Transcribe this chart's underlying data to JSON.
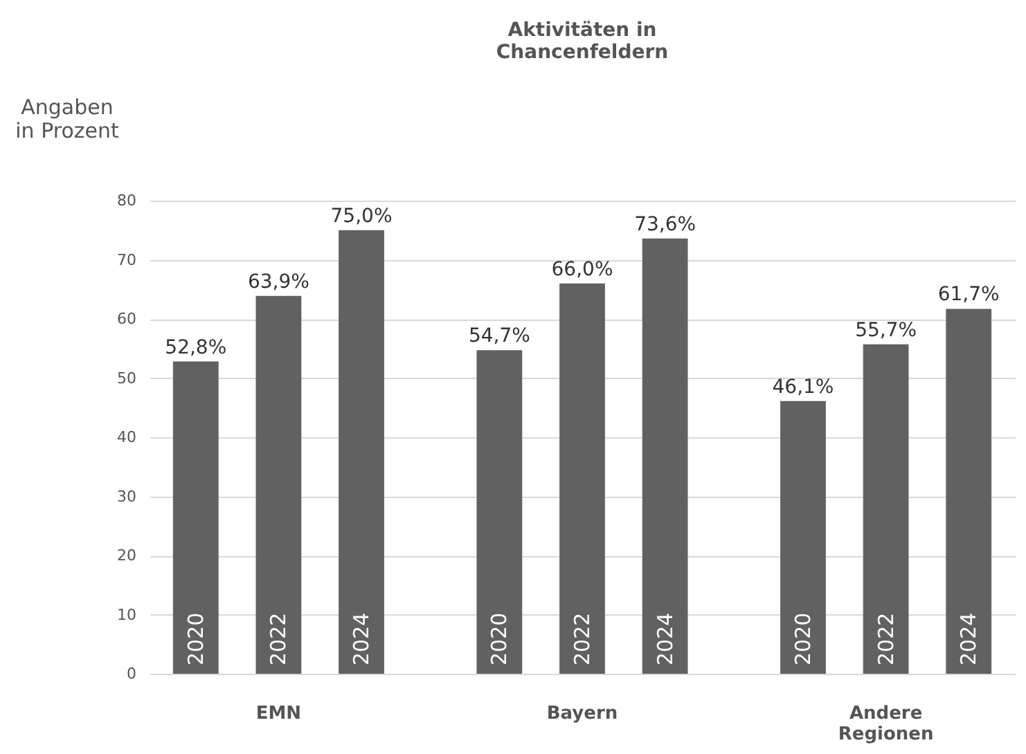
{
  "chart_data": {
    "type": "bar",
    "title": "Aktivitäten in Chancenfeldern",
    "ylabel": "Angaben in Prozent",
    "categories": [
      "EMN",
      "Bayern",
      "Andere Regionen"
    ],
    "series": [
      {
        "name": "2020",
        "color": "#616161",
        "values": [
          52.8,
          54.7,
          46.1
        ],
        "value_labels": [
          "52,8%",
          "54,7%",
          "46,1%"
        ]
      },
      {
        "name": "2022",
        "color": "#616161",
        "values": [
          63.9,
          66.0,
          55.7
        ],
        "value_labels": [
          "63,9%",
          "66,0%",
          "55,7%"
        ]
      },
      {
        "name": "2024",
        "color": "#616161",
        "values": [
          75.0,
          73.6,
          61.7
        ],
        "value_labels": [
          "75,0%",
          "73,6%",
          "61,7%"
        ]
      }
    ],
    "ylim": [
      0,
      80
    ],
    "yticks": [
      0,
      10,
      20,
      30,
      40,
      50,
      60,
      70,
      80
    ],
    "grid": "y"
  }
}
